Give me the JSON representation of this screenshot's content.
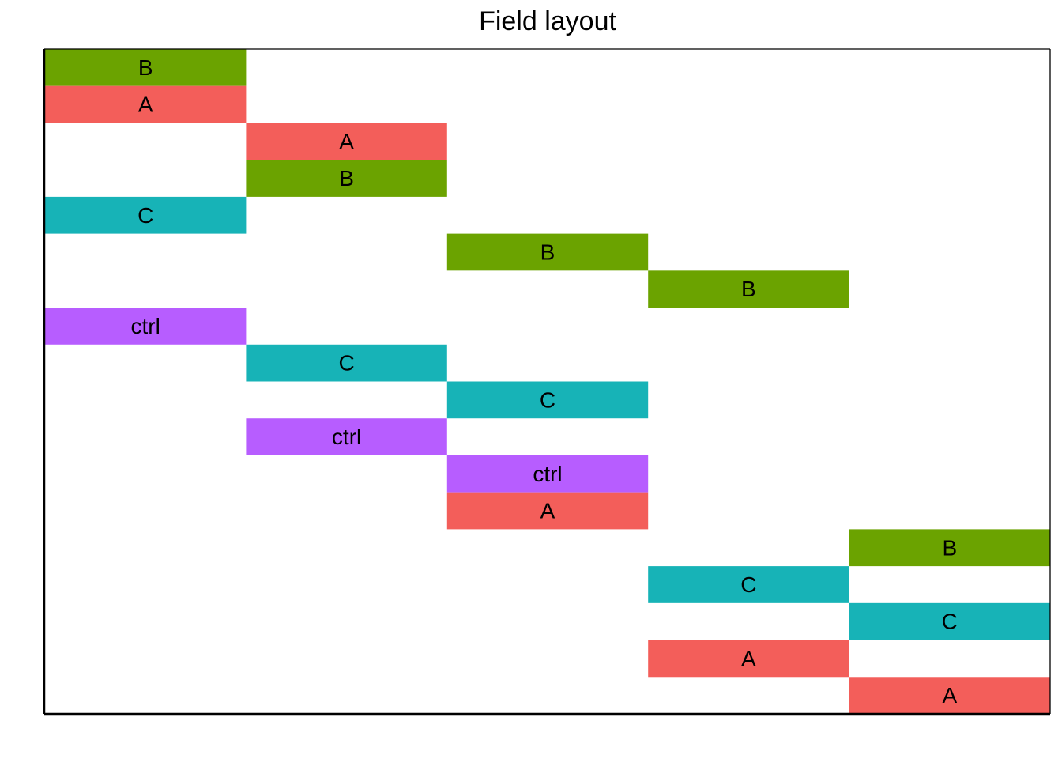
{
  "chart_data": {
    "type": "heatmap",
    "title": "Field layout",
    "xlabel": "",
    "ylabel": "",
    "columns": 5,
    "rows": 18,
    "colors": {
      "A": "#F35E5A",
      "B": "#6BA300",
      "C": "#17B3B7",
      "ctrl": "#B75DFF"
    },
    "cells": [
      {
        "row": 1,
        "col": 1,
        "label": "B"
      },
      {
        "row": 2,
        "col": 1,
        "label": "A"
      },
      {
        "row": 3,
        "col": 2,
        "label": "A"
      },
      {
        "row": 4,
        "col": 2,
        "label": "B"
      },
      {
        "row": 5,
        "col": 1,
        "label": "C"
      },
      {
        "row": 6,
        "col": 3,
        "label": "B"
      },
      {
        "row": 7,
        "col": 4,
        "label": "B"
      },
      {
        "row": 8,
        "col": 1,
        "label": "ctrl"
      },
      {
        "row": 9,
        "col": 2,
        "label": "C"
      },
      {
        "row": 10,
        "col": 3,
        "label": "C"
      },
      {
        "row": 11,
        "col": 2,
        "label": "ctrl"
      },
      {
        "row": 12,
        "col": 3,
        "label": "ctrl"
      },
      {
        "row": 13,
        "col": 3,
        "label": "A"
      },
      {
        "row": 14,
        "col": 5,
        "label": "B"
      },
      {
        "row": 15,
        "col": 4,
        "label": "C"
      },
      {
        "row": 16,
        "col": 5,
        "label": "C"
      },
      {
        "row": 17,
        "col": 4,
        "label": "A"
      },
      {
        "row": 18,
        "col": 5,
        "label": "A"
      }
    ]
  }
}
